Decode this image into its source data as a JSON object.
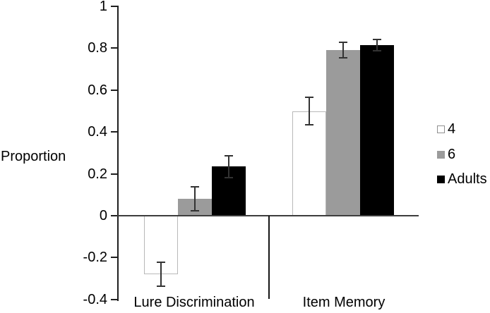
{
  "chart_data": {
    "type": "bar",
    "title": "",
    "ylabel": "Proportion",
    "categories": [
      "Lure Discrimination",
      "Item Memory"
    ],
    "series": [
      {
        "name": "4",
        "values": [
          -0.28,
          0.5
        ],
        "errors": [
          0.06,
          0.07
        ],
        "fill": "#ffffff",
        "border": "#b8b8b8",
        "swatch_border": "#8f8f8f"
      },
      {
        "name": "6",
        "values": [
          0.08,
          0.79
        ],
        "errors": [
          0.06,
          0.04
        ],
        "fill": "#9b9b9b",
        "border": "#9b9b9b",
        "swatch_border": "#9b9b9b"
      },
      {
        "name": "Adults",
        "values": [
          0.235,
          0.815
        ],
        "errors": [
          0.055,
          0.03
        ],
        "fill": "#000000",
        "border": "#000000",
        "swatch_border": "#000000"
      }
    ],
    "ylim": [
      -0.4,
      1.0
    ],
    "yticks": [
      1,
      0.8,
      0.6,
      0.4,
      0.2,
      0,
      -0.2,
      -0.4
    ],
    "ytick_labels": [
      "1",
      "0.8",
      "0.6",
      "0.4",
      "0.2",
      "0",
      "-0.2",
      "-0.4"
    ],
    "grid": false,
    "error_bars": true,
    "legend_position": "right",
    "colors": {
      "axis": "#1f1f1f",
      "baseline": "#3d3d3d",
      "error_bar": "#333333",
      "text": "#000000",
      "background": "#ffffff"
    }
  }
}
